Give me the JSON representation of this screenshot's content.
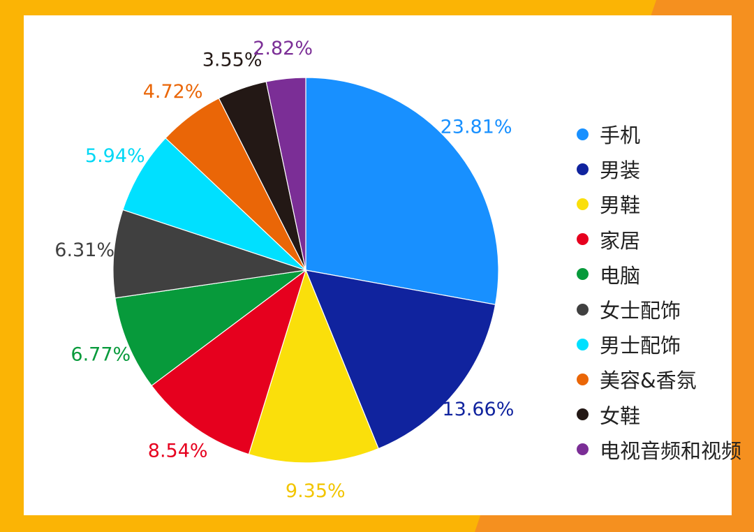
{
  "chart_data": {
    "type": "pie",
    "categories": [
      "手机",
      "男装",
      "男鞋",
      "家居",
      "电脑",
      "女士配饰",
      "男士配饰",
      "美容&香氛",
      "女鞋",
      "电视音频和视频"
    ],
    "values": [
      23.81,
      13.66,
      9.35,
      8.54,
      6.77,
      6.31,
      5.94,
      4.72,
      3.55,
      2.82
    ],
    "labels": [
      "23.81%",
      "13.66%",
      "9.35%",
      "8.54%",
      "6.77%",
      "6.31%",
      "5.94%",
      "4.72%",
      "3.55%",
      "2.82%"
    ],
    "colors": [
      "#1890ff",
      "#10239e",
      "#fadf0b",
      "#e6001e",
      "#079a3b",
      "#404040",
      "#00e0ff",
      "#ea6607",
      "#231815",
      "#7b2e96"
    ],
    "label_colors": [
      "#1890ff",
      "#10239e",
      "#f2c500",
      "#e6001e",
      "#079a3b",
      "#404040",
      "#00d8f5",
      "#ea6607",
      "#231815",
      "#7b2e96"
    ],
    "start_angle": "12 o'clock",
    "direction": "clockwise",
    "legend_position": "right"
  },
  "background": {
    "outer": "#fbb405",
    "accent": "#f5901f",
    "card": "#ffffff"
  }
}
